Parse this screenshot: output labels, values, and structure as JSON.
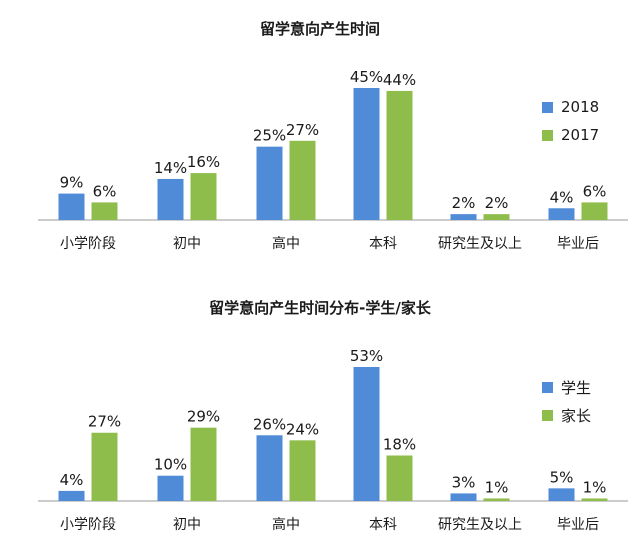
{
  "colors": {
    "series_a": "#4f8bd6",
    "series_b": "#8fbd4c",
    "axis": "#999999"
  },
  "chart_data": [
    {
      "type": "bar",
      "title": "留学意向产生时间",
      "categories": [
        "小学阶段",
        "初中",
        "高中",
        "本科",
        "研究生及以上",
        "毕业后"
      ],
      "series": [
        {
          "name": "2018",
          "values": [
            9,
            14,
            25,
            45,
            2,
            4
          ],
          "labels": [
            "9%",
            "14%",
            "25%",
            "45%",
            "2%",
            "4%"
          ]
        },
        {
          "name": "2017",
          "values": [
            6,
            16,
            27,
            44,
            2,
            6
          ],
          "labels": [
            "6%",
            "16%",
            "27%",
            "44%",
            "2%",
            "6%"
          ]
        }
      ],
      "ylim": [
        0,
        45
      ],
      "grid": false,
      "legend": "right"
    },
    {
      "type": "bar",
      "title": "留学意向产生时间分布-学生/家长",
      "categories": [
        "小学阶段",
        "初中",
        "高中",
        "本科",
        "研究生及以上",
        "毕业后"
      ],
      "series": [
        {
          "name": "学生",
          "values": [
            4,
            10,
            26,
            53,
            3,
            5
          ],
          "labels": [
            "4%",
            "10%",
            "26%",
            "53%",
            "3%",
            "5%"
          ]
        },
        {
          "name": "家长",
          "values": [
            27,
            29,
            24,
            18,
            1,
            1
          ],
          "labels": [
            "27%",
            "29%",
            "24%",
            "18%",
            "1%",
            "1%"
          ]
        }
      ],
      "ylim": [
        0,
        53
      ],
      "grid": false,
      "legend": "right"
    }
  ]
}
